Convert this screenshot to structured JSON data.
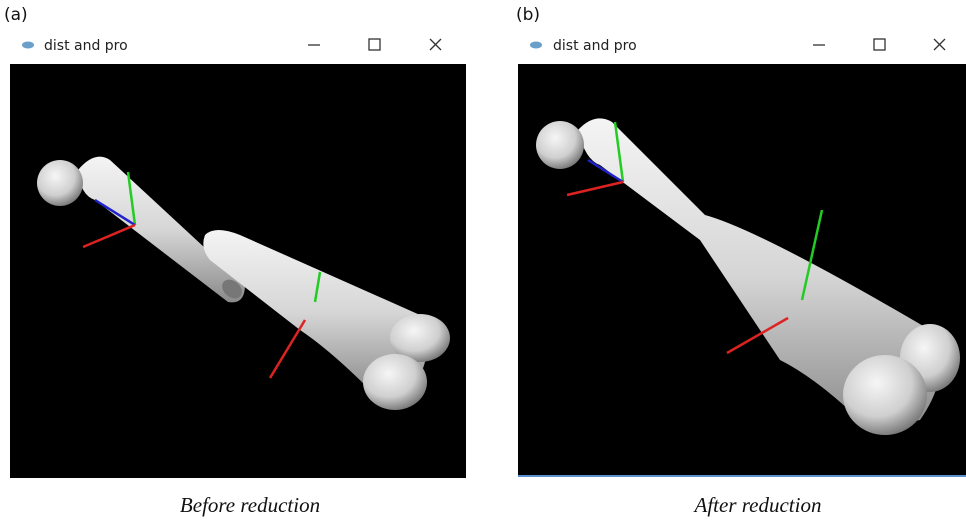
{
  "panels": [
    {
      "label": "(a)",
      "window_title": "dist and pro",
      "caption": "Before reduction"
    },
    {
      "label": "(b)",
      "window_title": "dist and pro",
      "caption": "After reduction"
    }
  ]
}
